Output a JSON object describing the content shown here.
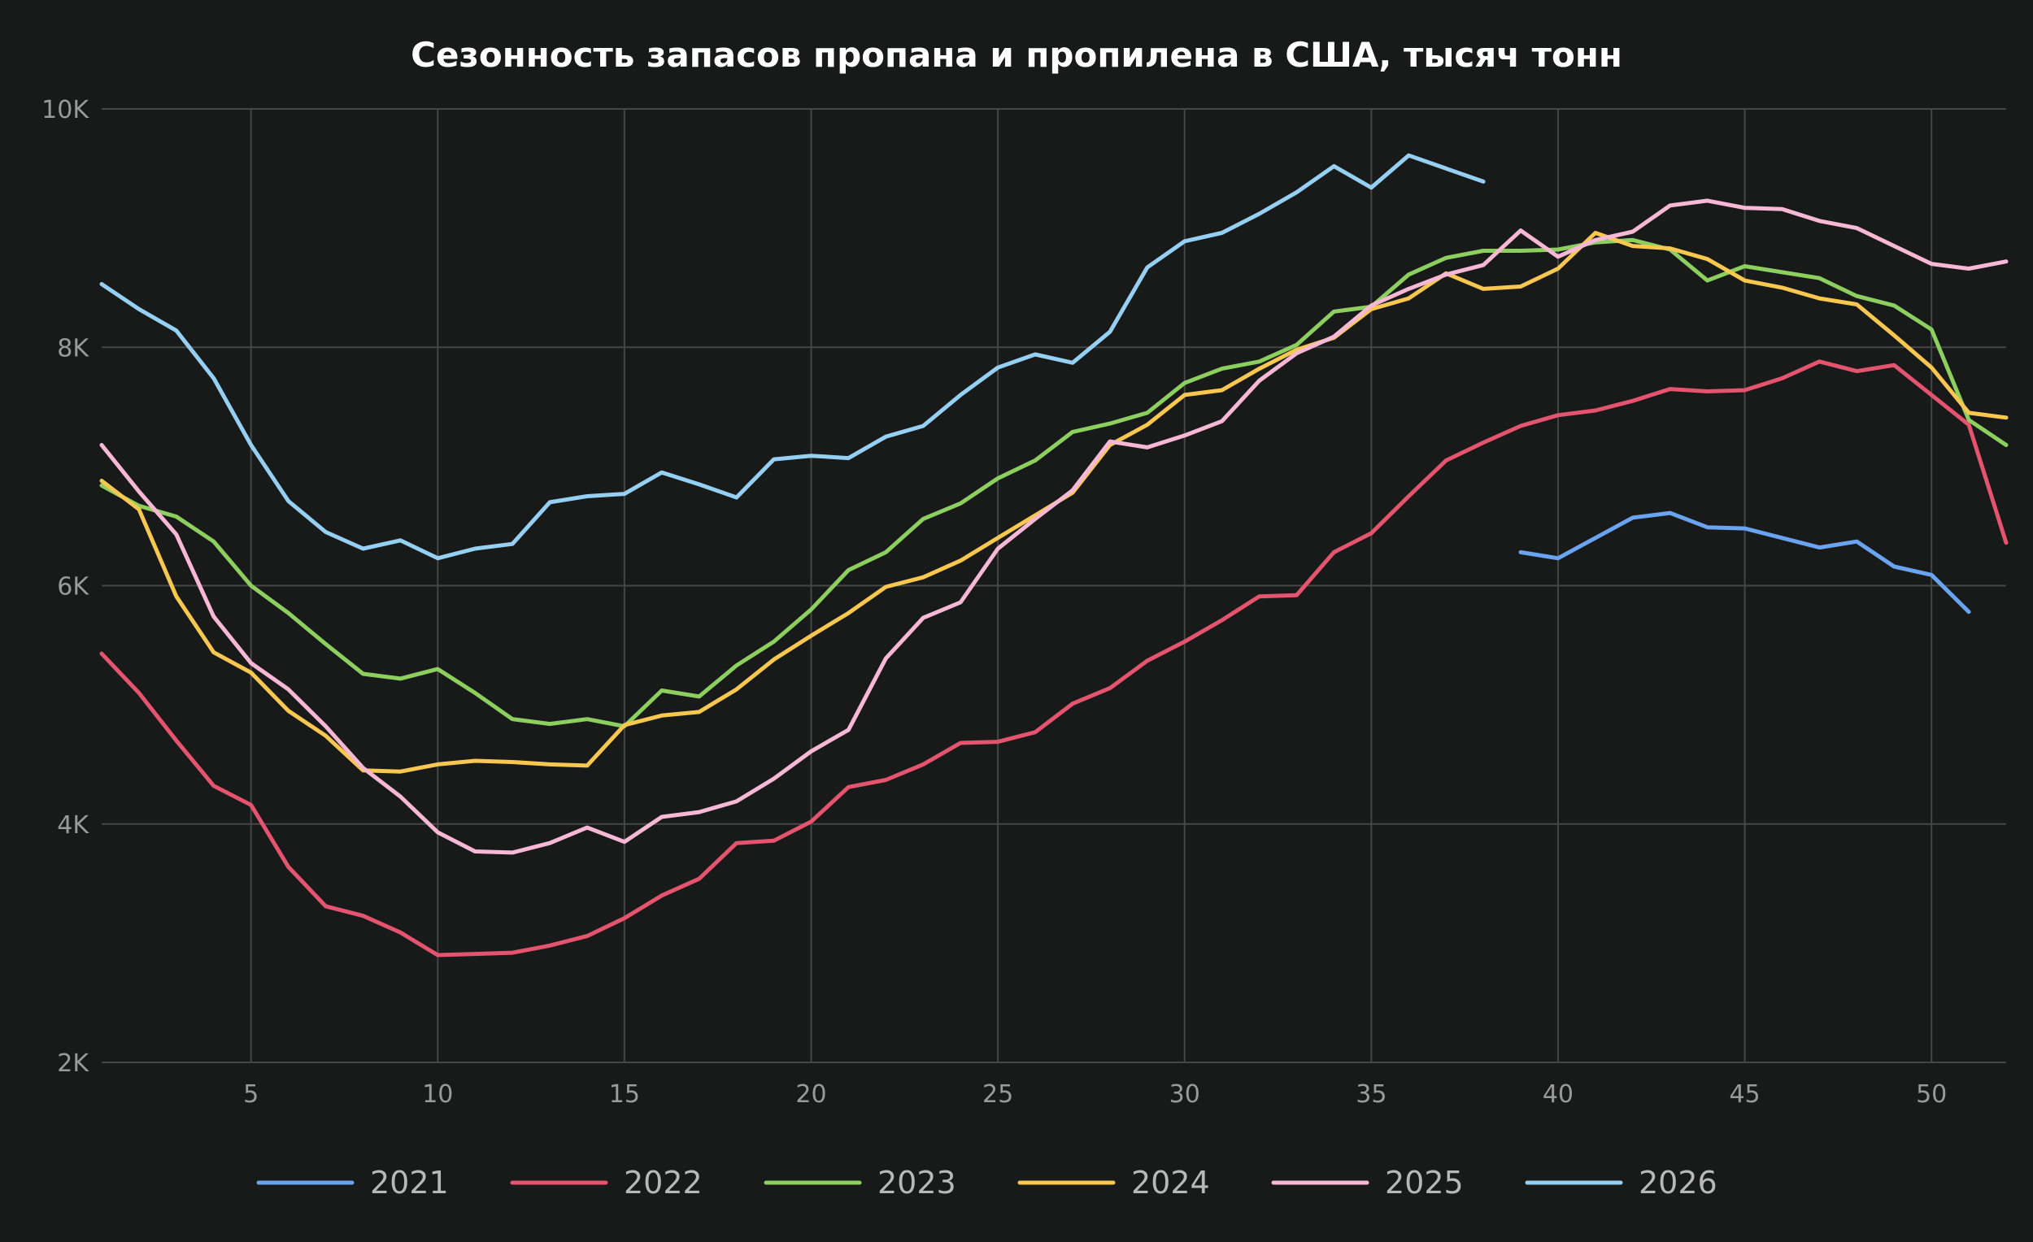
{
  "chart_data": {
    "type": "line",
    "title": "Сезонность запасов пропана и пропилена в США, тысяч тонн",
    "xlabel": "",
    "ylabel": "",
    "xlim": [
      1,
      52
    ],
    "ylim": [
      2000,
      10000
    ],
    "x_ticks": [
      5,
      10,
      15,
      20,
      25,
      30,
      35,
      40,
      45,
      50
    ],
    "x_tick_labels": [
      "5",
      "10",
      "15",
      "20",
      "25",
      "30",
      "35",
      "40",
      "45",
      "50"
    ],
    "y_ticks": [
      2000,
      4000,
      6000,
      8000,
      10000
    ],
    "y_tick_labels": [
      "2K",
      "4K",
      "6K",
      "8K",
      "10K"
    ],
    "grid": true,
    "legend_position": "bottom",
    "series": [
      {
        "name": "2021",
        "color": "#6aa3ef",
        "x": [
          39,
          40,
          41,
          42,
          43,
          44,
          45,
          46,
          47,
          48,
          49,
          50,
          51
        ],
        "values": [
          6280,
          6230,
          6400,
          6570,
          6610,
          6490,
          6480,
          6400,
          6320,
          6370,
          6160,
          6090,
          5780
        ]
      },
      {
        "name": "2022",
        "color": "#e5546e",
        "x": [
          1,
          2,
          3,
          4,
          5,
          6,
          7,
          8,
          9,
          10,
          11,
          12,
          13,
          14,
          15,
          16,
          17,
          18,
          19,
          20,
          21,
          22,
          23,
          24,
          25,
          26,
          27,
          28,
          29,
          30,
          31,
          32,
          33,
          34,
          35,
          36,
          37,
          38,
          39,
          40,
          41,
          42,
          43,
          44,
          45,
          46,
          47,
          48,
          49,
          50,
          51,
          52
        ],
        "values": [
          5430,
          5100,
          4700,
          4320,
          4160,
          3640,
          3310,
          3230,
          3090,
          2900,
          2910,
          2920,
          2980,
          3060,
          3210,
          3400,
          3540,
          3840,
          3860,
          4020,
          4310,
          4370,
          4500,
          4680,
          4690,
          4770,
          5010,
          5140,
          5370,
          5530,
          5710,
          5910,
          5920,
          6280,
          6440,
          6750,
          7050,
          7200,
          7340,
          7430,
          7470,
          7550,
          7650,
          7630,
          7640,
          7740,
          7880,
          7800,
          7850,
          7600,
          7350,
          6360
        ]
      },
      {
        "name": "2023",
        "color": "#8ccf5f",
        "x": [
          1,
          2,
          3,
          4,
          5,
          6,
          7,
          8,
          9,
          10,
          11,
          12,
          13,
          14,
          15,
          16,
          17,
          18,
          19,
          20,
          21,
          22,
          23,
          24,
          25,
          26,
          27,
          28,
          29,
          30,
          31,
          32,
          33,
          34,
          35,
          36,
          37,
          38,
          39,
          40,
          41,
          42,
          43,
          44,
          45,
          46,
          47,
          48,
          49,
          50,
          51,
          52
        ],
        "values": [
          6840,
          6670,
          6580,
          6370,
          6000,
          5770,
          5510,
          5260,
          5220,
          5300,
          5100,
          4880,
          4840,
          4880,
          4820,
          5120,
          5070,
          5330,
          5530,
          5800,
          6130,
          6280,
          6560,
          6690,
          6900,
          7050,
          7290,
          7360,
          7450,
          7700,
          7820,
          7880,
          8020,
          8300,
          8340,
          8610,
          8750,
          8810,
          8810,
          8820,
          8880,
          8900,
          8820,
          8560,
          8680,
          8630,
          8580,
          8430,
          8350,
          8150,
          7390,
          7180
        ]
      },
      {
        "name": "2024",
        "color": "#f7c750",
        "x": [
          1,
          2,
          3,
          4,
          5,
          6,
          7,
          8,
          9,
          10,
          11,
          12,
          13,
          14,
          15,
          16,
          17,
          18,
          19,
          20,
          21,
          22,
          23,
          24,
          25,
          26,
          27,
          28,
          29,
          30,
          31,
          32,
          33,
          34,
          35,
          36,
          37,
          38,
          39,
          40,
          41,
          42,
          43,
          44,
          45,
          46,
          47,
          48,
          49,
          50,
          51,
          52
        ],
        "values": [
          6880,
          6640,
          5910,
          5440,
          5270,
          4950,
          4740,
          4450,
          4440,
          4500,
          4530,
          4520,
          4500,
          4490,
          4830,
          4910,
          4940,
          5130,
          5380,
          5580,
          5770,
          5990,
          6070,
          6210,
          6400,
          6590,
          6780,
          7180,
          7350,
          7600,
          7640,
          7820,
          7980,
          8080,
          8320,
          8410,
          8620,
          8490,
          8510,
          8660,
          8960,
          8850,
          8830,
          8740,
          8560,
          8500,
          8410,
          8360,
          8100,
          7830,
          7450,
          7410
        ]
      },
      {
        "name": "2025",
        "color": "#f7b8d6",
        "x": [
          1,
          2,
          3,
          4,
          5,
          6,
          7,
          8,
          9,
          10,
          11,
          12,
          13,
          14,
          15,
          16,
          17,
          18,
          19,
          20,
          21,
          22,
          23,
          24,
          25,
          26,
          27,
          28,
          29,
          30,
          31,
          32,
          33,
          34,
          35,
          36,
          37,
          38,
          39,
          40,
          41,
          42,
          43,
          44,
          45,
          46,
          47,
          48,
          49,
          50,
          51,
          52
        ],
        "values": [
          7180,
          6790,
          6430,
          5740,
          5350,
          5130,
          4820,
          4470,
          4230,
          3930,
          3770,
          3760,
          3840,
          3970,
          3850,
          4060,
          4100,
          4190,
          4380,
          4610,
          4790,
          5390,
          5730,
          5860,
          6310,
          6560,
          6800,
          7210,
          7160,
          7260,
          7380,
          7720,
          7950,
          8090,
          8350,
          8490,
          8610,
          8690,
          8980,
          8760,
          8900,
          8970,
          9190,
          9230,
          9170,
          9160,
          9060,
          9000,
          8850,
          8700,
          8660,
          8720
        ]
      },
      {
        "name": "2026",
        "color": "#95d0f2",
        "x": [
          1,
          2,
          3,
          4,
          5,
          6,
          7,
          8,
          9,
          10,
          11,
          12,
          13,
          14,
          15,
          16,
          17,
          18,
          19,
          20,
          21,
          22,
          23,
          24,
          25,
          26,
          27,
          28,
          29,
          30,
          31,
          32,
          33,
          34,
          35,
          36,
          37,
          38
        ],
        "values": [
          8530,
          8320,
          8140,
          7740,
          7180,
          6710,
          6450,
          6310,
          6380,
          6230,
          6310,
          6350,
          6700,
          6750,
          6770,
          6950,
          6850,
          6740,
          7060,
          7090,
          7070,
          7250,
          7340,
          7600,
          7830,
          7940,
          7870,
          8130,
          8670,
          8890,
          8960,
          9120,
          9300,
          9520,
          9340,
          9610,
          9500,
          9390
        ]
      }
    ]
  }
}
